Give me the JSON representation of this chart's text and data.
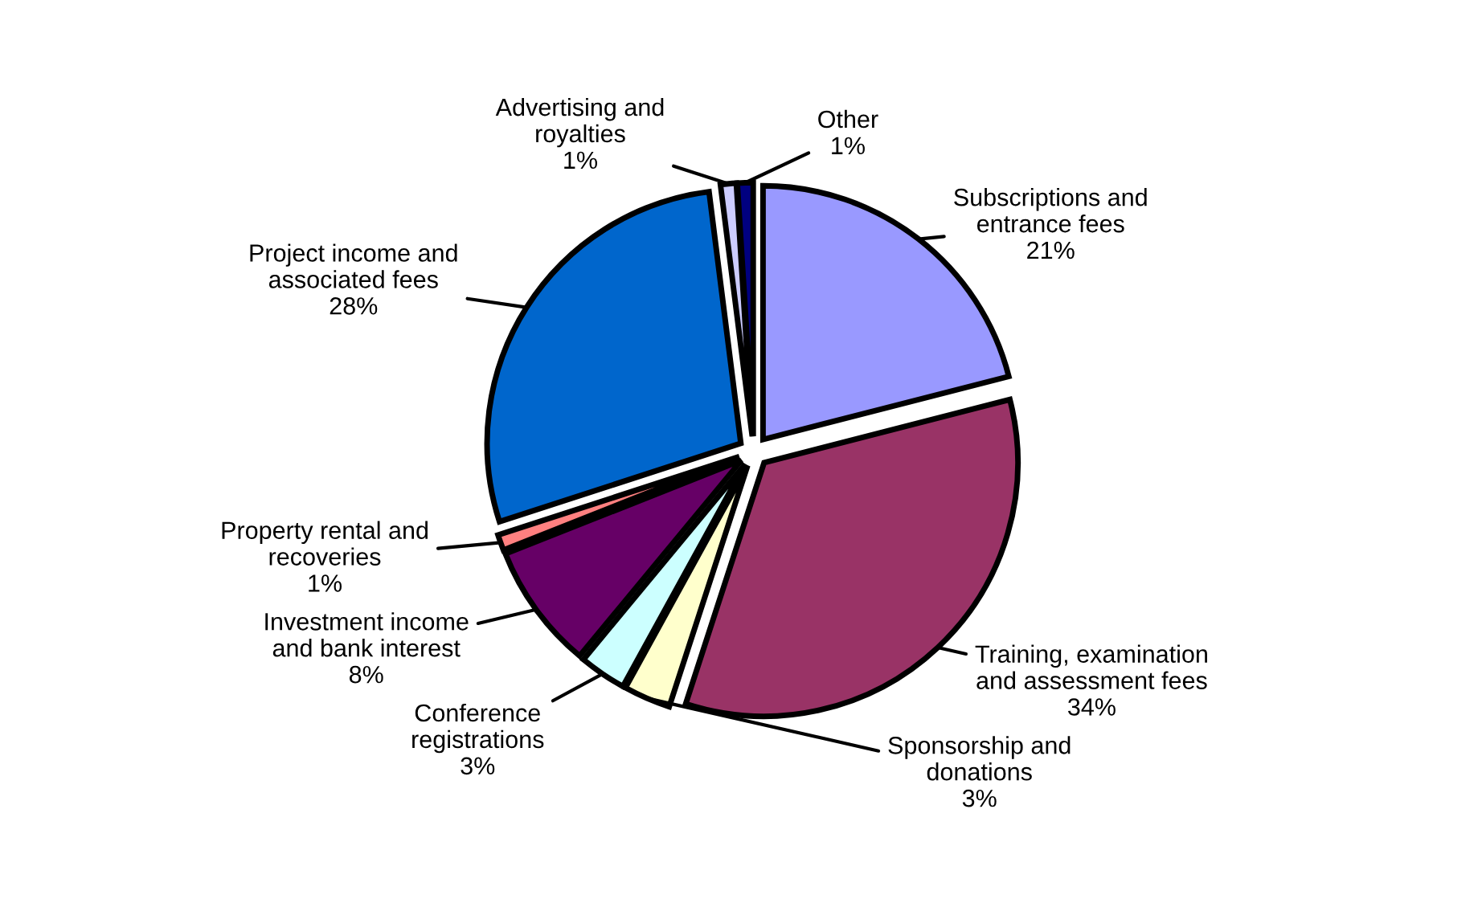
{
  "chart_data": {
    "type": "pie",
    "categories": [
      "Subscriptions and\nentrance fees",
      "Training, examination\nand assessment fees",
      "Sponsorship and\ndonations",
      "Conference\nregistrations",
      "Investment income\nand bank interest",
      "Property rental and\nrecoveries",
      "Project income and\nassociated fees",
      "Advertising and\nroyalties",
      "Other"
    ],
    "values": [
      21,
      34,
      3,
      3,
      8,
      1,
      28,
      1,
      1
    ],
    "colors": [
      "#9999ff",
      "#993366",
      "#ffffcc",
      "#ccffff",
      "#660066",
      "#ff8080",
      "#0066cc",
      "#ccccff",
      "#000080"
    ],
    "value_labels": [
      "21%",
      "34%",
      "3%",
      "3%",
      "8%",
      "1%",
      "28%",
      "1%",
      "1%"
    ],
    "legend": false
  }
}
